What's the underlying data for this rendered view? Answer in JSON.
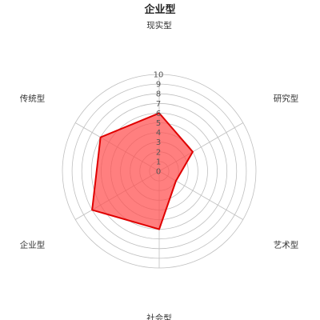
{
  "chart_data": {
    "type": "radar",
    "title": "企业型",
    "axes": [
      "现实型",
      "研究型",
      "艺术型",
      "社会型",
      "企业型",
      "传统型"
    ],
    "series": [
      {
        "values": [
          6,
          4,
          2,
          6,
          8,
          7
        ]
      }
    ],
    "rlim": [
      0,
      10
    ],
    "ticks": [
      "0",
      "1",
      "2",
      "3",
      "4",
      "5",
      "6",
      "7",
      "8",
      "9",
      "10"
    ],
    "grid": true,
    "colors": {
      "fill": "#ff4d4d",
      "stroke": "#e00000",
      "grid": "#bfbfbf"
    }
  }
}
